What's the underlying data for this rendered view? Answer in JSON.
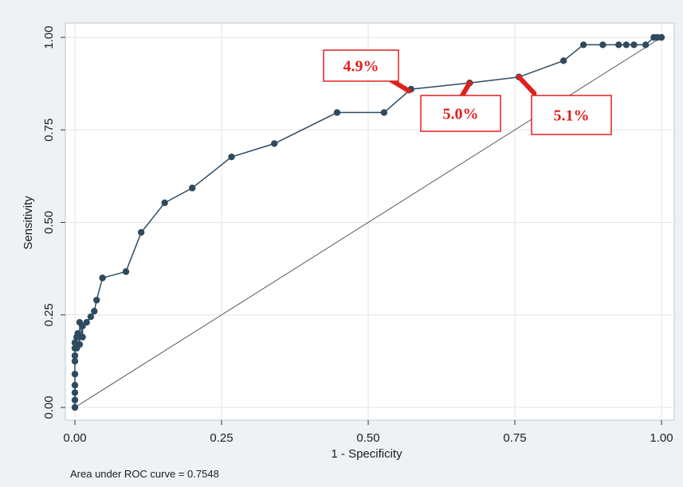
{
  "chart_data": {
    "type": "line",
    "title": "",
    "xlabel": "1 - Specificity",
    "ylabel": "Sensitivity",
    "xlim": [
      0,
      1
    ],
    "ylim": [
      0,
      1
    ],
    "xticks": [
      "0.00",
      "0.25",
      "0.50",
      "0.75",
      "1.00"
    ],
    "yticks": [
      "0.00",
      "0.25",
      "0.50",
      "0.75",
      "1.00"
    ],
    "grid": true,
    "legend": "none",
    "colors": {
      "curve": "#2f4a5e",
      "reference": "#555555",
      "annotation": "#e0201c",
      "plot_bg": "#ffffff",
      "page_bg": "#eef2f4"
    },
    "series": [
      {
        "x": [
          0.0,
          0.0,
          0.0,
          0.0,
          0.0,
          0.0,
          0.0,
          0.0,
          0.0,
          0.003,
          0.003,
          0.005,
          0.008,
          0.008,
          0.013,
          0.013,
          0.02,
          0.027,
          0.033,
          0.037,
          0.047,
          0.087,
          0.113,
          0.153,
          0.2,
          0.267,
          0.34,
          0.447,
          0.527,
          0.573,
          0.673,
          0.757,
          0.833,
          0.867,
          0.9,
          0.927,
          0.94,
          0.953,
          0.973,
          0.987,
          0.993,
          1.0
        ],
        "y": [
          0.0,
          0.02,
          0.04,
          0.06,
          0.09,
          0.125,
          0.14,
          0.16,
          0.175,
          0.16,
          0.19,
          0.2,
          0.17,
          0.23,
          0.19,
          0.22,
          0.23,
          0.245,
          0.26,
          0.29,
          0.35,
          0.367,
          0.473,
          0.553,
          0.593,
          0.677,
          0.713,
          0.797,
          0.797,
          0.86,
          0.877,
          0.893,
          0.937,
          0.98,
          0.98,
          0.98,
          0.98,
          0.98,
          0.98,
          1.0,
          1.0,
          1.0
        ]
      },
      {
        "x": [
          0,
          1
        ],
        "y": [
          0,
          1
        ]
      }
    ],
    "annotations": [
      {
        "text": "4.9%",
        "x": 0.57,
        "y": 0.855
      },
      {
        "text": "5.0%",
        "x": 0.673,
        "y": 0.877
      },
      {
        "text": "5.1%",
        "x": 0.757,
        "y": 0.893
      }
    ],
    "note": "Area under ROC curve = 0.7548"
  }
}
